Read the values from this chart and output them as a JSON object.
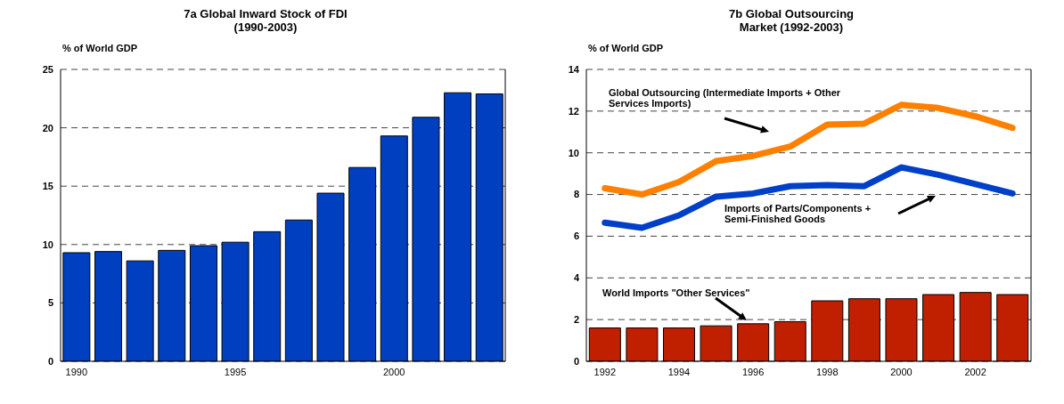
{
  "chart_data": [
    {
      "type": "bar",
      "title": "7a Global Inward Stock of FDI\n(1990-2003)",
      "ylabel": "% of World GDP",
      "categories": [
        "1990",
        null,
        null,
        null,
        null,
        "1995",
        null,
        null,
        null,
        null,
        "2000",
        null,
        null,
        null
      ],
      "values": [
        9.3,
        9.4,
        8.6,
        9.5,
        9.9,
        10.2,
        11.1,
        12.1,
        14.4,
        16.6,
        19.3,
        20.9,
        23.0,
        22.9
      ],
      "color": "#0040c0",
      "ylim": [
        0,
        25
      ],
      "yticks": [
        0,
        5,
        10,
        15,
        20,
        25
      ],
      "grid": "y"
    },
    {
      "type": "bar",
      "title": "7b Global Outsourcing\nMarket (1992-2003)",
      "ylabel": "% of World GDP",
      "categories": [
        "1992",
        null,
        "1994",
        null,
        "1996",
        null,
        "1998",
        null,
        "2000",
        null,
        "2002",
        null
      ],
      "series": [
        {
          "name": "World Imports \"Other Services\"",
          "color": "#c02000",
          "values": [
            1.6,
            1.6,
            1.6,
            1.7,
            1.8,
            1.9,
            2.9,
            3.0,
            3.0,
            3.2,
            3.3,
            3.2
          ]
        },
        {
          "name": "Global Outsourcing (Intermediate Imports + Other Services Imports)",
          "type": "line",
          "color": "#ff8000",
          "values": [
            8.3,
            8.0,
            8.6,
            9.6,
            9.85,
            10.3,
            11.35,
            11.4,
            12.3,
            12.15,
            11.75,
            11.2
          ]
        },
        {
          "name": "Imports of Parts/Components + Semi-Finished Goods",
          "type": "line",
          "color": "#0040c8",
          "values": [
            6.65,
            6.4,
            7.0,
            7.9,
            8.05,
            8.4,
            8.45,
            8.4,
            9.3,
            8.95,
            8.5,
            8.05
          ]
        }
      ],
      "ylim": [
        0,
        14
      ],
      "yticks": [
        0,
        2,
        4,
        6,
        8,
        10,
        12,
        14
      ],
      "grid": "y"
    }
  ]
}
